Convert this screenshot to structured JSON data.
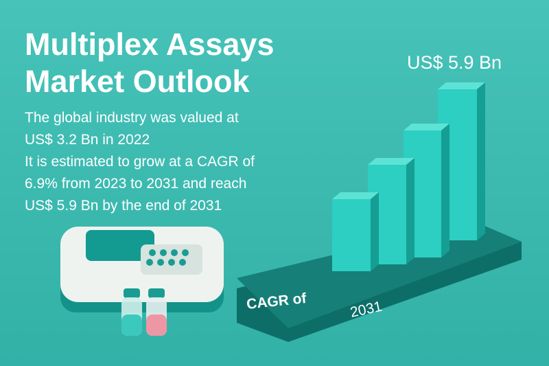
{
  "header": {
    "title_lines": [
      "Multiplex Assays",
      "Market Outlook"
    ]
  },
  "body": {
    "lines": [
      "The global industry was valued at",
      "US$ 3.2 Bn in 2022",
      "It is estimated to grow at a CAGR of",
      "6.9% from 2023 to 2031 and reach",
      "US$ 5.9 Bn by the end of 2031"
    ]
  },
  "illustration": {
    "top_label": "US$ 5.9 Bn",
    "platform_left": "CAGR of",
    "platform_right": "2031"
  }
}
